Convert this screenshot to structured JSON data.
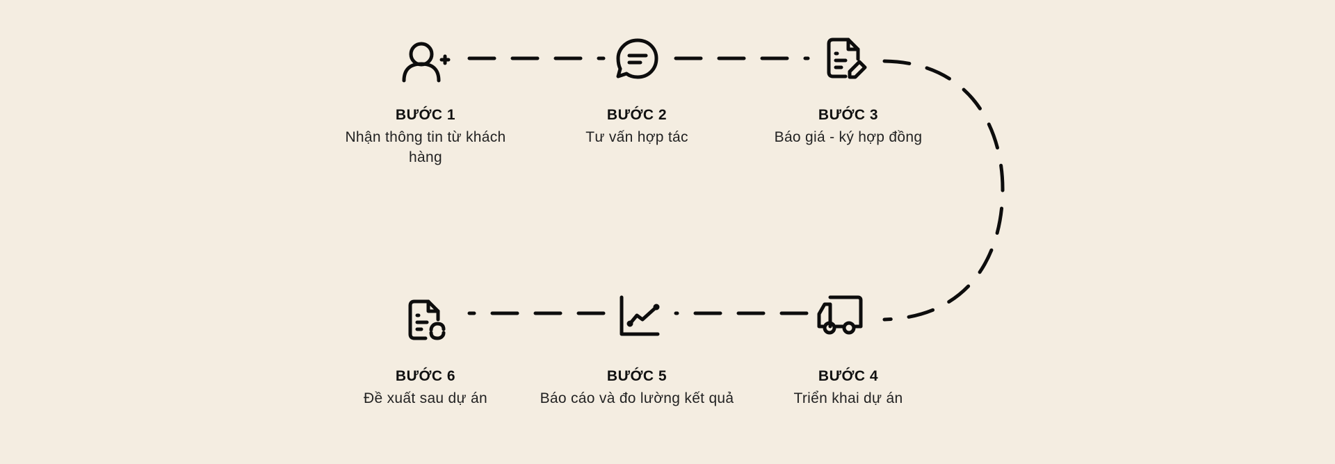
{
  "steps": [
    {
      "title": "BƯỚC 1",
      "description": "Nhận thông tin từ khách hàng",
      "icon": "user-plus-icon"
    },
    {
      "title": "BƯỚC 2",
      "description": "Tư vấn hợp tác",
      "icon": "message-icon"
    },
    {
      "title": "BƯỚC 3",
      "description": "Báo giá - ký hợp đồng",
      "icon": "document-edit-icon"
    },
    {
      "title": "BƯỚC 4",
      "description": "Triển khai dự án",
      "icon": "truck-icon"
    },
    {
      "title": "BƯỚC 5",
      "description": "Báo cáo và đo lường kết quả",
      "icon": "chart-line-icon"
    },
    {
      "title": "BƯỚC 6",
      "description": "Đề xuất sau dự án",
      "icon": "document-refresh-icon"
    }
  ],
  "colors": {
    "background": "#f4ede1",
    "stroke": "#0d0d0d"
  }
}
